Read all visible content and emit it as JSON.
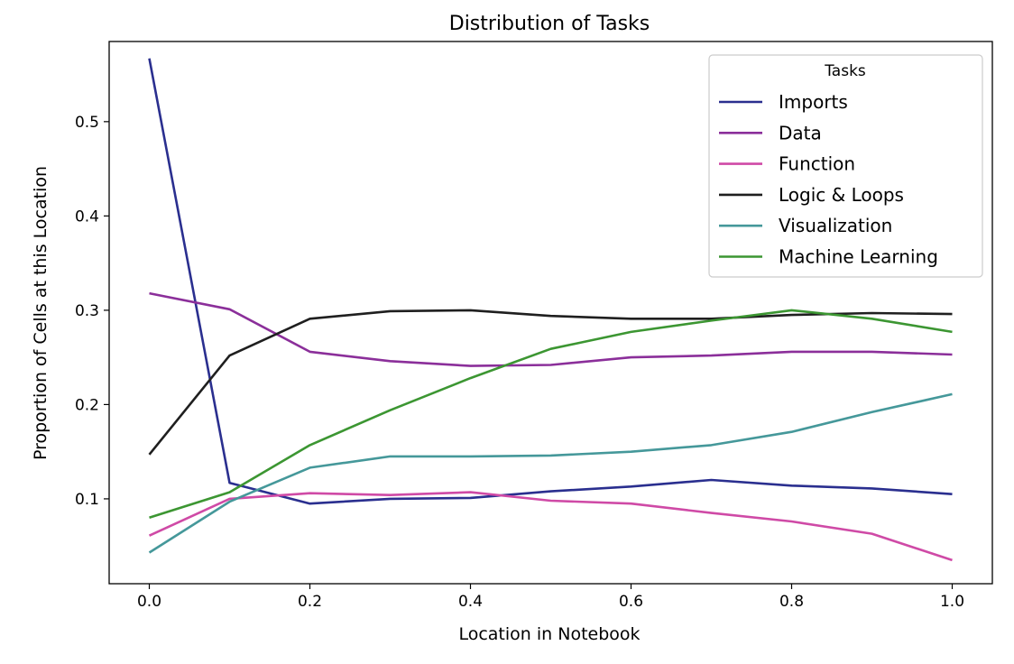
{
  "chart_data": {
    "type": "line",
    "title": "Distribution of Tasks",
    "xlabel": "Location in Notebook",
    "ylabel": "Proportion of Cells at this Location",
    "x": [
      0.0,
      0.1,
      0.2,
      0.3,
      0.4,
      0.5,
      0.6,
      0.7,
      0.8,
      0.9,
      1.0
    ],
    "xlim": [
      -0.05,
      1.05
    ],
    "ylim": [
      0.01,
      0.585
    ],
    "xticks": [
      0.0,
      0.2,
      0.4,
      0.6,
      0.8,
      1.0
    ],
    "xtick_labels": [
      "0.0",
      "0.2",
      "0.4",
      "0.6",
      "0.8",
      "1.0"
    ],
    "yticks": [
      0.1,
      0.2,
      0.3,
      0.4,
      0.5
    ],
    "ytick_labels": [
      "0.1",
      "0.2",
      "0.3",
      "0.4",
      "0.5"
    ],
    "grid": false,
    "legend": {
      "title": "Tasks",
      "position": "upper-right"
    },
    "series": [
      {
        "name": "Imports",
        "color": "#2a2f8f",
        "values": [
          0.567,
          0.117,
          0.095,
          0.1,
          0.101,
          0.108,
          0.113,
          0.12,
          0.114,
          0.111,
          0.105
        ]
      },
      {
        "name": "Data",
        "color": "#8b2f9a",
        "values": [
          0.318,
          0.301,
          0.256,
          0.246,
          0.241,
          0.242,
          0.25,
          0.252,
          0.256,
          0.256,
          0.253
        ]
      },
      {
        "name": "Function",
        "color": "#cf4aa6",
        "values": [
          0.061,
          0.1,
          0.106,
          0.104,
          0.107,
          0.098,
          0.095,
          0.085,
          0.076,
          0.063,
          0.035
        ]
      },
      {
        "name": "Logic & Loops",
        "color": "#1f1f1f",
        "values": [
          0.147,
          0.252,
          0.291,
          0.299,
          0.3,
          0.294,
          0.291,
          0.291,
          0.295,
          0.297,
          0.296
        ]
      },
      {
        "name": "Visualization",
        "color": "#45989a",
        "values": [
          0.043,
          0.097,
          0.133,
          0.145,
          0.145,
          0.146,
          0.15,
          0.157,
          0.171,
          0.192,
          0.211
        ]
      },
      {
        "name": "Machine Learning",
        "color": "#3c9632",
        "values": [
          0.08,
          0.107,
          0.157,
          0.194,
          0.228,
          0.259,
          0.277,
          0.289,
          0.3,
          0.291,
          0.277
        ]
      }
    ]
  }
}
